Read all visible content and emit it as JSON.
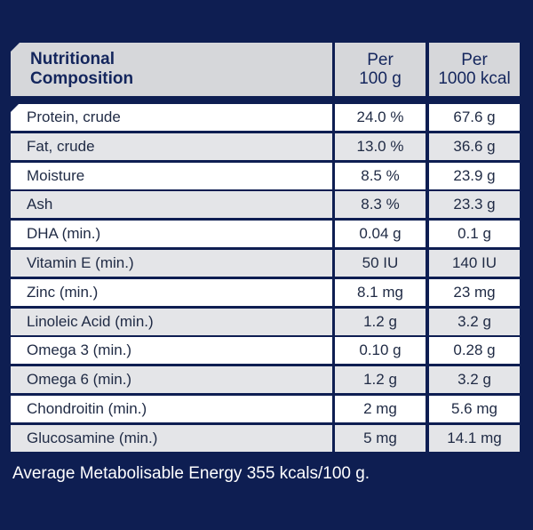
{
  "header": {
    "col_name": "Nutritional Composition",
    "col_per_100g": "Per 100 g",
    "col_per_1000kcal": "Per 1000 kcal"
  },
  "rows": [
    {
      "name": "Protein, crude",
      "per_100g": "24.0 %",
      "per_1000kcal": "67.6 g"
    },
    {
      "name": "Fat, crude",
      "per_100g": "13.0 %",
      "per_1000kcal": "36.6 g"
    },
    {
      "name": "Moisture",
      "per_100g": "8.5 %",
      "per_1000kcal": "23.9 g"
    },
    {
      "name": "Ash",
      "per_100g": "8.3 %",
      "per_1000kcal": "23.3 g"
    },
    {
      "name": "DHA (min.)",
      "per_100g": "0.04 g",
      "per_1000kcal": "0.1 g"
    },
    {
      "name": "Vitamin E (min.)",
      "per_100g": "50 IU",
      "per_1000kcal": "140 IU"
    },
    {
      "name": "Zinc (min.)",
      "per_100g": "8.1 mg",
      "per_1000kcal": "23 mg"
    },
    {
      "name": "Linoleic Acid (min.)",
      "per_100g": "1.2 g",
      "per_1000kcal": "3.2 g"
    },
    {
      "name": "Omega 3 (min.)",
      "per_100g": "0.10 g",
      "per_1000kcal": "0.28 g"
    },
    {
      "name": "Omega 6 (min.)",
      "per_100g": "1.2 g",
      "per_1000kcal": "3.2 g"
    },
    {
      "name": "Chondroitin (min.)",
      "per_100g": "2 mg",
      "per_1000kcal": "5.6 mg"
    },
    {
      "name": "Glucosamine (min.)",
      "per_100g": "5 mg",
      "per_1000kcal": "14.1 mg"
    }
  ],
  "footer": "Average Metabolisable Energy 355 kcals/100 g.",
  "colors": {
    "background": "#0e1e52",
    "header_bg": "#d6d7da",
    "row_alt": "#e4e5e8",
    "text_header": "#14265d"
  }
}
